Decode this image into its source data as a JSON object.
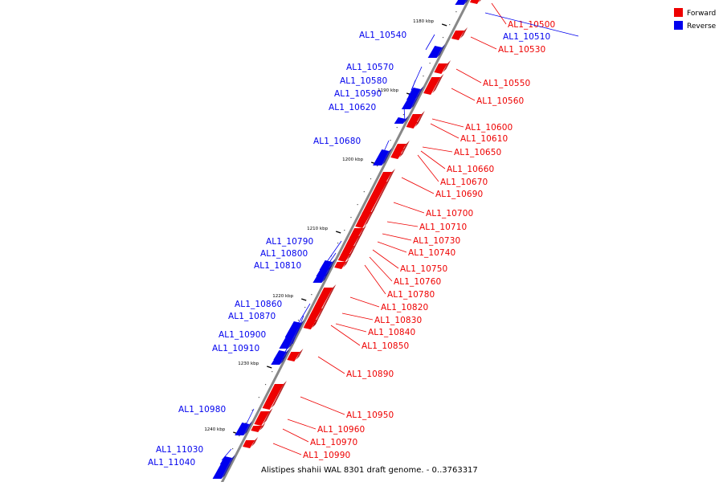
{
  "colors": {
    "forward": "#ee0000",
    "reverse": "#0000ee",
    "axis": "#888888"
  },
  "legend": [
    {
      "label": "Forward",
      "color": "#ee0000"
    },
    {
      "label": "Reverse",
      "color": "#0000ee"
    }
  ],
  "caption": "Alistipes shahii WAL 8301 draft genome. - 0..3763317",
  "kbp_labels": [
    "1180 kbp",
    "1190 kbp",
    "1200 kbp",
    "1210 kbp",
    "1220 kbp",
    "1230 kbp",
    "1240 kbp"
  ],
  "features": [
    {
      "name": "AL1_10500",
      "strand": "forward"
    },
    {
      "name": "AL1_10510",
      "strand": "reverse"
    },
    {
      "name": "AL1_10530",
      "strand": "forward"
    },
    {
      "name": "AL1_10540",
      "strand": "reverse"
    },
    {
      "name": "AL1_10550",
      "strand": "forward"
    },
    {
      "name": "AL1_10560",
      "strand": "forward"
    },
    {
      "name": "AL1_10570",
      "strand": "reverse"
    },
    {
      "name": "AL1_10580",
      "strand": "reverse"
    },
    {
      "name": "AL1_10590",
      "strand": "reverse"
    },
    {
      "name": "AL1_10600",
      "strand": "forward"
    },
    {
      "name": "AL1_10610",
      "strand": "forward"
    },
    {
      "name": "AL1_10620",
      "strand": "reverse"
    },
    {
      "name": "AL1_10650",
      "strand": "forward"
    },
    {
      "name": "AL1_10660",
      "strand": "forward"
    },
    {
      "name": "AL1_10670",
      "strand": "forward"
    },
    {
      "name": "AL1_10680",
      "strand": "reverse"
    },
    {
      "name": "AL1_10690",
      "strand": "forward"
    },
    {
      "name": "AL1_10700",
      "strand": "forward"
    },
    {
      "name": "AL1_10710",
      "strand": "forward"
    },
    {
      "name": "AL1_10730",
      "strand": "forward"
    },
    {
      "name": "AL1_10740",
      "strand": "forward"
    },
    {
      "name": "AL1_10750",
      "strand": "forward"
    },
    {
      "name": "AL1_10760",
      "strand": "forward"
    },
    {
      "name": "AL1_10780",
      "strand": "forward"
    },
    {
      "name": "AL1_10790",
      "strand": "reverse"
    },
    {
      "name": "AL1_10800",
      "strand": "reverse"
    },
    {
      "name": "AL1_10810",
      "strand": "reverse"
    },
    {
      "name": "AL1_10820",
      "strand": "forward"
    },
    {
      "name": "AL1_10830",
      "strand": "forward"
    },
    {
      "name": "AL1_10840",
      "strand": "forward"
    },
    {
      "name": "AL1_10850",
      "strand": "forward"
    },
    {
      "name": "AL1_10860",
      "strand": "reverse"
    },
    {
      "name": "AL1_10870",
      "strand": "reverse"
    },
    {
      "name": "AL1_10890",
      "strand": "forward"
    },
    {
      "name": "AL1_10900",
      "strand": "reverse"
    },
    {
      "name": "AL1_10910",
      "strand": "reverse"
    },
    {
      "name": "AL1_10950",
      "strand": "forward"
    },
    {
      "name": "AL1_10960",
      "strand": "forward"
    },
    {
      "name": "AL1_10970",
      "strand": "forward"
    },
    {
      "name": "AL1_10980",
      "strand": "reverse"
    },
    {
      "name": "AL1_10990",
      "strand": "forward"
    },
    {
      "name": "AL1_11030",
      "strand": "reverse"
    },
    {
      "name": "AL1_11040",
      "strand": "reverse"
    }
  ]
}
